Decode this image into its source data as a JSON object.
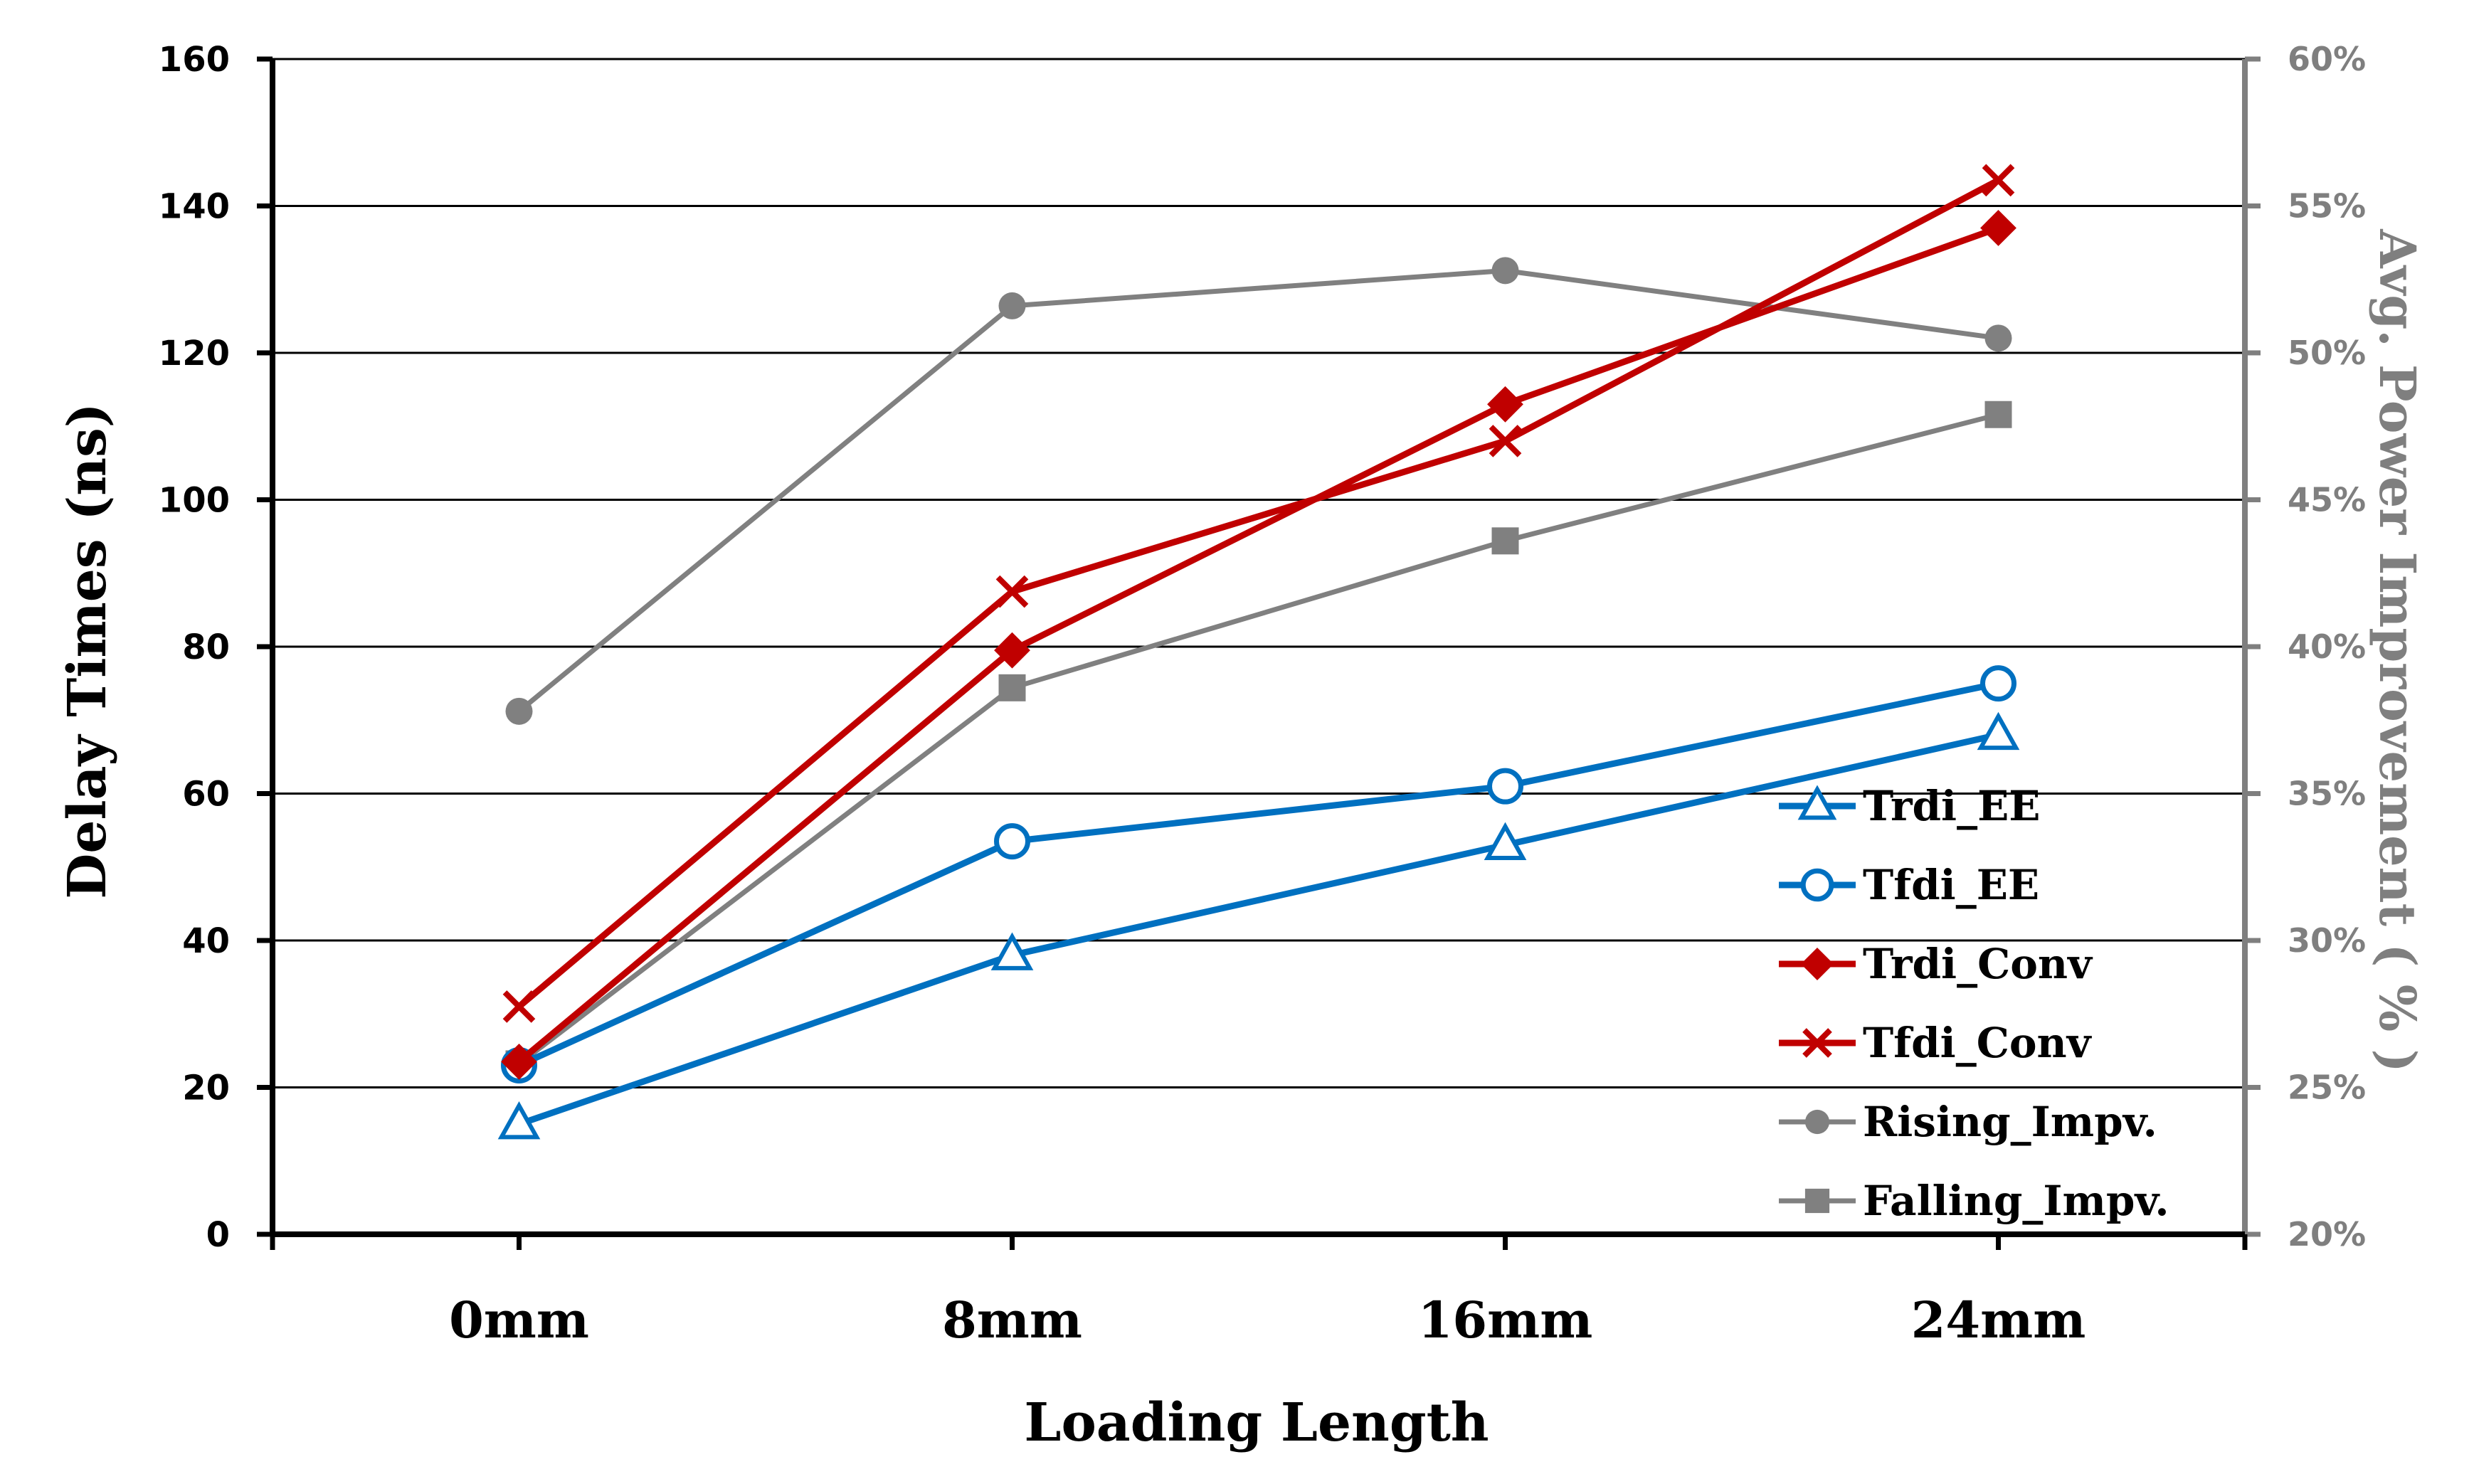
{
  "chart_data": {
    "type": "line",
    "categories": [
      "0mm",
      "8mm",
      "16mm",
      "24mm"
    ],
    "xlabel": "Loading Length",
    "ylabel": "Delay Times (ns)",
    "y2label": "Avg. Power Improvement ( % )",
    "ylim": [
      0,
      160
    ],
    "yticks": [
      "0",
      "20",
      "40",
      "60",
      "80",
      "100",
      "120",
      "140",
      "160"
    ],
    "y2lim": [
      20,
      60
    ],
    "y2ticks": [
      "20%",
      "25%",
      "30%",
      "35%",
      "40%",
      "45%",
      "50%",
      "55%",
      "60%"
    ],
    "grid": true,
    "legend_position": "bottom-right",
    "series": [
      {
        "name": "Trdi_EE",
        "axis": "left",
        "color": "#0070c0",
        "marker": "triangle",
        "values": [
          15,
          38,
          53,
          68
        ]
      },
      {
        "name": "Tfdi_EE",
        "axis": "left",
        "color": "#0070c0",
        "marker": "circle-open",
        "values": [
          23,
          53.5,
          61,
          75
        ]
      },
      {
        "name": "Trdi_Conv",
        "axis": "left",
        "color": "#c00000",
        "marker": "diamond",
        "values": [
          23.5,
          79.5,
          113,
          137
        ]
      },
      {
        "name": "Tfdi_Conv",
        "axis": "left",
        "color": "#c00000",
        "marker": "x",
        "values": [
          31,
          87.5,
          108,
          143.5
        ]
      },
      {
        "name": "Rising_Impv.",
        "axis": "right",
        "color": "#808080",
        "marker": "circle",
        "values": [
          37.8,
          51.6,
          52.8,
          50.5
        ]
      },
      {
        "name": "Falling_Impv.",
        "axis": "right",
        "color": "#808080",
        "marker": "square",
        "values": [
          25.8,
          38.6,
          43.6,
          47.9
        ]
      }
    ]
  }
}
